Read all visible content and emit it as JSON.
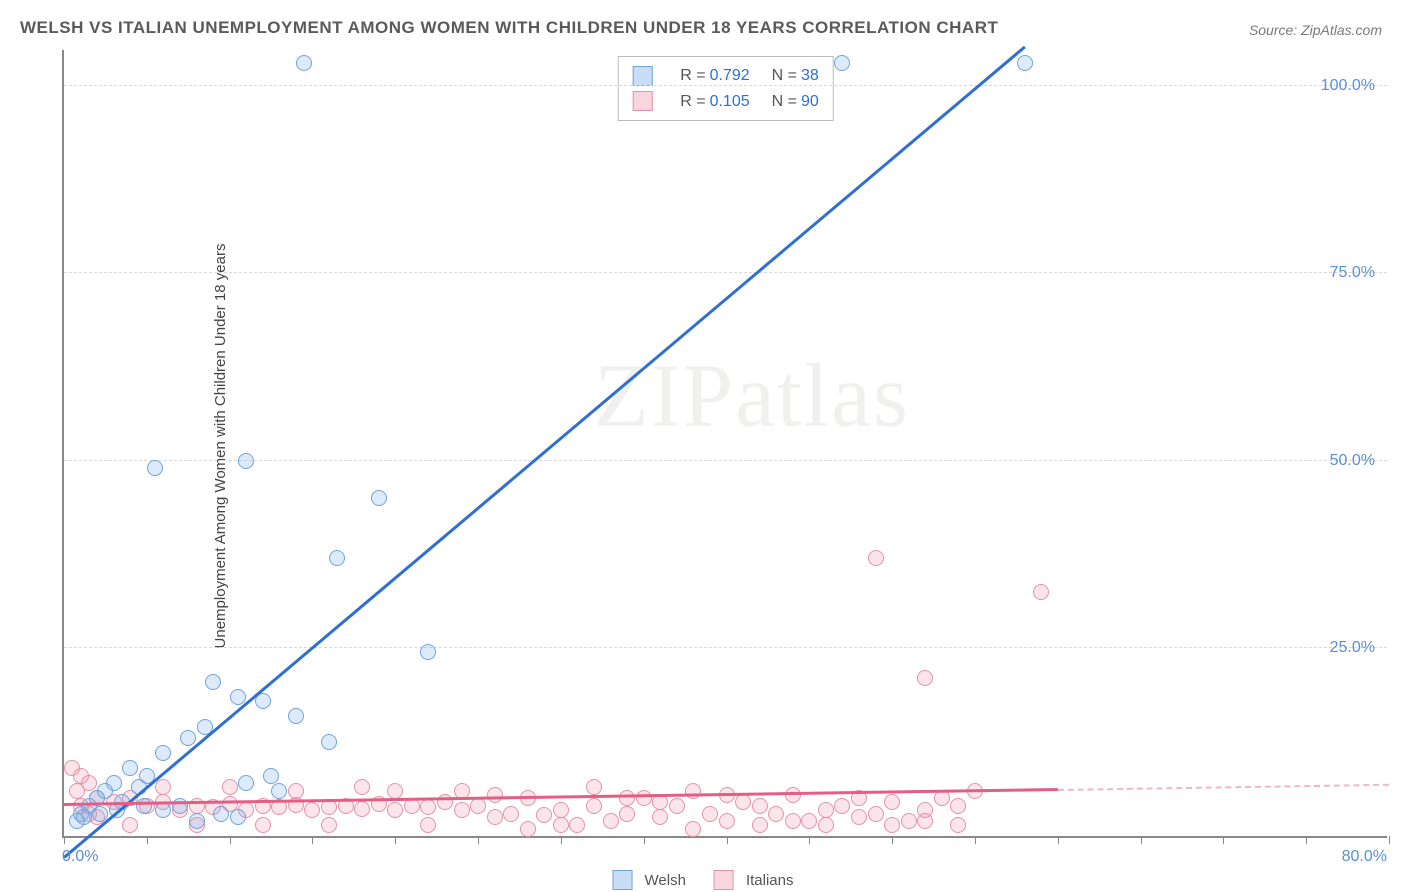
{
  "title": "WELSH VS ITALIAN UNEMPLOYMENT AMONG WOMEN WITH CHILDREN UNDER 18 YEARS CORRELATION CHART",
  "source": "Source: ZipAtlas.com",
  "ylabel": "Unemployment Among Women with Children Under 18 years",
  "watermark": "ZIPatlas",
  "chart": {
    "type": "scatter-correlation",
    "xlim": [
      0,
      80
    ],
    "ylim": [
      0,
      105
    ],
    "xtick_labels": [
      {
        "x": 0,
        "label": "0.0%",
        "align": "left"
      },
      {
        "x": 80,
        "label": "80.0%",
        "align": "right"
      }
    ],
    "xtick_positions": [
      0,
      5,
      10,
      15,
      20,
      25,
      30,
      35,
      40,
      45,
      50,
      55,
      60,
      65,
      70,
      75,
      80
    ],
    "ytick_labels": [
      {
        "y": 25,
        "label": "25.0%"
      },
      {
        "y": 50,
        "label": "50.0%"
      },
      {
        "y": 75,
        "label": "75.0%"
      },
      {
        "y": 100,
        "label": "100.0%"
      }
    ],
    "grid_h": [
      25,
      50,
      75,
      100
    ],
    "background_color": "#ffffff",
    "grid_color": "#d8d8d8",
    "axis_color": "#888888",
    "marker_size": 16,
    "series": {
      "welsh": {
        "label": "Welsh",
        "color_fill": "rgba(120,170,230,0.25)",
        "color_stroke": "#6fa3de",
        "trend_color": "#2f6fd0",
        "R": "0.792",
        "N": "38",
        "trend": {
          "x0": 0,
          "y0": -3,
          "x1": 58,
          "y1": 105
        },
        "points": [
          [
            14.5,
            103
          ],
          [
            47,
            103
          ],
          [
            58,
            103
          ],
          [
            5.5,
            49
          ],
          [
            11,
            50
          ],
          [
            19,
            45
          ],
          [
            16.5,
            37
          ],
          [
            9,
            20.5
          ],
          [
            10.5,
            18.5
          ],
          [
            12,
            18
          ],
          [
            22,
            24.5
          ],
          [
            14,
            16
          ],
          [
            16,
            12.5
          ],
          [
            6,
            11
          ],
          [
            7.5,
            13
          ],
          [
            8.5,
            14.5
          ],
          [
            4,
            9
          ],
          [
            5,
            8
          ],
          [
            3,
            7
          ],
          [
            2,
            5
          ],
          [
            2.5,
            6
          ],
          [
            1.5,
            4
          ],
          [
            1,
            3
          ],
          [
            3.5,
            4.5
          ],
          [
            4.5,
            6.5
          ],
          [
            6,
            3.5
          ],
          [
            7,
            4
          ],
          [
            11,
            7
          ],
          [
            12.5,
            8
          ],
          [
            13,
            6
          ],
          [
            8,
            2
          ],
          [
            9.5,
            3
          ],
          [
            10.5,
            2.5
          ],
          [
            0.8,
            2
          ],
          [
            1.2,
            2.5
          ],
          [
            2.2,
            3
          ],
          [
            3.2,
            3.5
          ],
          [
            4.8,
            4
          ]
        ]
      },
      "italian": {
        "label": "Italians",
        "color_fill": "rgba(240,150,170,0.25)",
        "color_stroke": "#e890a6",
        "trend_color": "#e35d84",
        "R": "0.105",
        "N": "90",
        "trend": {
          "x0": 0,
          "y0": 4,
          "x1": 60,
          "y1": 6
        },
        "trend_dashed": {
          "x0": 60,
          "y0": 6,
          "x1": 80,
          "y1": 6.7
        },
        "points": [
          [
            49,
            37
          ],
          [
            59,
            32.5
          ],
          [
            52,
            21
          ],
          [
            0.5,
            9
          ],
          [
            1,
            8
          ],
          [
            1.5,
            7
          ],
          [
            0.8,
            6
          ],
          [
            2,
            5
          ],
          [
            3,
            4.5
          ],
          [
            4,
            5
          ],
          [
            5,
            4
          ],
          [
            6,
            4.5
          ],
          [
            7,
            3.5
          ],
          [
            8,
            4
          ],
          [
            9,
            3.8
          ],
          [
            10,
            4.2
          ],
          [
            11,
            3.5
          ],
          [
            12,
            4
          ],
          [
            13,
            3.8
          ],
          [
            14,
            4.1
          ],
          [
            15,
            3.5
          ],
          [
            16,
            3.9
          ],
          [
            17,
            4
          ],
          [
            18,
            3.6
          ],
          [
            19,
            4.2
          ],
          [
            20,
            3.5
          ],
          [
            21,
            4
          ],
          [
            22,
            3.8
          ],
          [
            23,
            4.5
          ],
          [
            24,
            3.5
          ],
          [
            25,
            4
          ],
          [
            26,
            2.5
          ],
          [
            27,
            3
          ],
          [
            28,
            5
          ],
          [
            29,
            2.8
          ],
          [
            30,
            3.5
          ],
          [
            31,
            1.5
          ],
          [
            32,
            4
          ],
          [
            33,
            2
          ],
          [
            34,
            3
          ],
          [
            35,
            5
          ],
          [
            36,
            2.5
          ],
          [
            37,
            4
          ],
          [
            38,
            6
          ],
          [
            39,
            3
          ],
          [
            40,
            2
          ],
          [
            41,
            4.5
          ],
          [
            42,
            1.5
          ],
          [
            43,
            3
          ],
          [
            44,
            5.5
          ],
          [
            45,
            2
          ],
          [
            46,
            3.5
          ],
          [
            47,
            4
          ],
          [
            48,
            2.5
          ],
          [
            49,
            3
          ],
          [
            50,
            4.5
          ],
          [
            51,
            2
          ],
          [
            52,
            3.5
          ],
          [
            53,
            5
          ],
          [
            54,
            4
          ],
          [
            55,
            6
          ],
          [
            32,
            6.5
          ],
          [
            28,
            1
          ],
          [
            30,
            1.5
          ],
          [
            34,
            5
          ],
          [
            36,
            4.5
          ],
          [
            26,
            5.5
          ],
          [
            24,
            6
          ],
          [
            22,
            1.5
          ],
          [
            20,
            6
          ],
          [
            18,
            6.5
          ],
          [
            16,
            1.5
          ],
          [
            14,
            6
          ],
          [
            12,
            1.5
          ],
          [
            10,
            6.5
          ],
          [
            8,
            1.5
          ],
          [
            6,
            6.5
          ],
          [
            4,
            1.5
          ],
          [
            2,
            2.5
          ],
          [
            44,
            2
          ],
          [
            46,
            1.5
          ],
          [
            38,
            1
          ],
          [
            40,
            5.5
          ],
          [
            42,
            4
          ],
          [
            48,
            5
          ],
          [
            50,
            1.5
          ],
          [
            52,
            2
          ],
          [
            54,
            1.5
          ],
          [
            1,
            4
          ],
          [
            1.5,
            3
          ]
        ]
      }
    },
    "legend": [
      {
        "series": "welsh",
        "label": "Welsh"
      },
      {
        "series": "italian",
        "label": "Italians"
      }
    ]
  }
}
